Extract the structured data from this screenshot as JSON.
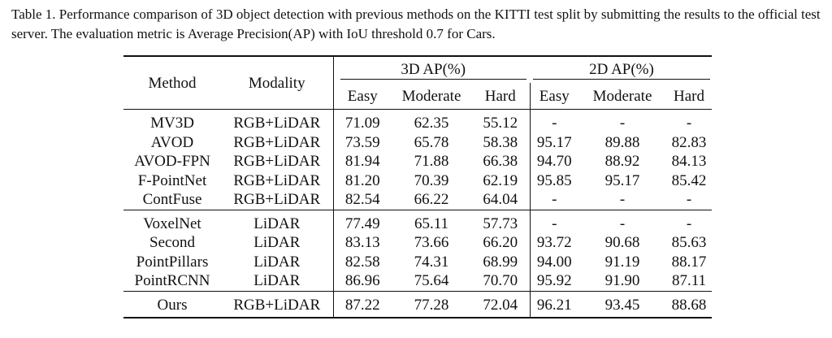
{
  "caption": "Table 1. Performance comparison of 3D object detection with previous methods on the KITTI test split by submitting the results to the official test server. The evaluation metric is Average Precision(AP) with IoU threshold 0.7 for Cars.",
  "header": {
    "method": "Method",
    "modality": "Modality",
    "group3d": "3D AP(%)",
    "group2d": "2D AP(%)",
    "easy": "Easy",
    "moderate": "Moderate",
    "hard": "Hard"
  },
  "groups": [
    {
      "rows": [
        {
          "method": "MV3D",
          "modality": "RGB+LiDAR",
          "ap3d": [
            "71.09",
            "62.35",
            "55.12"
          ],
          "ap2d": [
            "-",
            "-",
            "-"
          ],
          "bold3d": [
            false,
            false,
            false
          ],
          "bold2d": [
            false,
            false,
            false
          ]
        },
        {
          "method": "AVOD",
          "modality": "RGB+LiDAR",
          "ap3d": [
            "73.59",
            "65.78",
            "58.38"
          ],
          "ap2d": [
            "95.17",
            "89.88",
            "82.83"
          ],
          "bold3d": [
            false,
            false,
            false
          ],
          "bold2d": [
            false,
            false,
            false
          ]
        },
        {
          "method": "AVOD-FPN",
          "modality": "RGB+LiDAR",
          "ap3d": [
            "81.94",
            "71.88",
            "66.38"
          ],
          "ap2d": [
            "94.70",
            "88.92",
            "84.13"
          ],
          "bold3d": [
            false,
            false,
            false
          ],
          "bold2d": [
            false,
            false,
            false
          ]
        },
        {
          "method": "F-PointNet",
          "modality": "RGB+LiDAR",
          "ap3d": [
            "81.20",
            "70.39",
            "62.19"
          ],
          "ap2d": [
            "95.85",
            "95.17",
            "85.42"
          ],
          "bold3d": [
            false,
            false,
            false
          ],
          "bold2d": [
            false,
            true,
            false
          ]
        },
        {
          "method": "ContFuse",
          "modality": "RGB+LiDAR",
          "ap3d": [
            "82.54",
            "66.22",
            "64.04"
          ],
          "ap2d": [
            "-",
            "-",
            "-"
          ],
          "bold3d": [
            false,
            false,
            false
          ],
          "bold2d": [
            false,
            false,
            false
          ]
        }
      ]
    },
    {
      "rows": [
        {
          "method": "VoxelNet",
          "modality": "LiDAR",
          "ap3d": [
            "77.49",
            "65.11",
            "57.73"
          ],
          "ap2d": [
            "-",
            "-",
            "-"
          ],
          "bold3d": [
            false,
            false,
            false
          ],
          "bold2d": [
            false,
            false,
            false
          ]
        },
        {
          "method": "Second",
          "modality": "LiDAR",
          "ap3d": [
            "83.13",
            "73.66",
            "66.20"
          ],
          "ap2d": [
            "93.72",
            "90.68",
            "85.63"
          ],
          "bold3d": [
            false,
            false,
            false
          ],
          "bold2d": [
            false,
            false,
            false
          ]
        },
        {
          "method": "PointPillars",
          "modality": "LiDAR",
          "ap3d": [
            "82.58",
            "74.31",
            "68.99"
          ],
          "ap2d": [
            "94.00",
            "91.19",
            "88.17"
          ],
          "bold3d": [
            false,
            false,
            false
          ],
          "bold2d": [
            false,
            false,
            false
          ]
        },
        {
          "method": "PointRCNN",
          "modality": "LiDAR",
          "ap3d": [
            "86.96",
            "75.64",
            "70.70"
          ],
          "ap2d": [
            "95.92",
            "91.90",
            "87.11"
          ],
          "bold3d": [
            false,
            false,
            false
          ],
          "bold2d": [
            false,
            false,
            false
          ]
        }
      ]
    },
    {
      "rows": [
        {
          "method": "Ours",
          "modality": "RGB+LiDAR",
          "ap3d": [
            "87.22",
            "77.28",
            "72.04"
          ],
          "ap2d": [
            "96.21",
            "93.45",
            "88.68"
          ],
          "bold3d": [
            true,
            true,
            true
          ],
          "bold2d": [
            true,
            false,
            true
          ]
        }
      ]
    }
  ]
}
